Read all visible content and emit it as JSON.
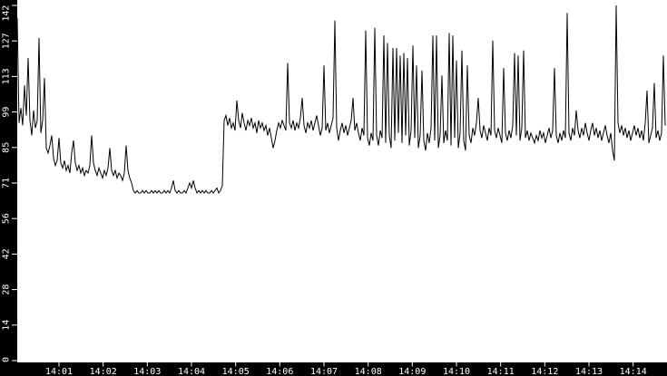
{
  "chart_data": {
    "type": "line",
    "title": "",
    "xlabel": "",
    "ylabel": "",
    "ylim": [
      0,
      142
    ],
    "y_tick_labels": [
      "142",
      "127",
      "113",
      "99",
      "85",
      "71",
      "56",
      "42",
      "28",
      "14",
      "0"
    ],
    "x_tick_labels": [
      "14:01",
      "14:02",
      "14:03",
      "14:04",
      "14:05",
      "14:06",
      "14:07",
      "14:08",
      "14:09",
      "14:10",
      "14:11",
      "14:12",
      "14:13",
      "14:14"
    ],
    "x_start_time": "14:00",
    "x_end_time": "14:14:45",
    "sample_interval_seconds": 2.47,
    "grid": "off",
    "legend": "none",
    "colors": {
      "line": "#000000",
      "plot_background": "#ffffff",
      "axis_background": "#000000",
      "axis_text": "#ffffff"
    },
    "samples": [
      137,
      95,
      101,
      94,
      110,
      98,
      121,
      96,
      90,
      100,
      93,
      96,
      129,
      91,
      96,
      113,
      85,
      83,
      86,
      90,
      81,
      78,
      80,
      89,
      79,
      77,
      80,
      76,
      78,
      75,
      83,
      88,
      79,
      76,
      78,
      75,
      77,
      74,
      76,
      75,
      78,
      90,
      79,
      76,
      74,
      77,
      75,
      73,
      76,
      74,
      77,
      85,
      76,
      74,
      76,
      73,
      75,
      74,
      72,
      75,
      86,
      76,
      73,
      71,
      68,
      67,
      68,
      67,
      67,
      68,
      67,
      68,
      67,
      67,
      68,
      67,
      68,
      67,
      68,
      67,
      67,
      68,
      67,
      68,
      67,
      69,
      72,
      68,
      67,
      68,
      67,
      67,
      68,
      67,
      69,
      71,
      69,
      72,
      69,
      67,
      68,
      67,
      68,
      67,
      68,
      67,
      67,
      68,
      67,
      68,
      69,
      67,
      68,
      70,
      96,
      98,
      94,
      97,
      93,
      95,
      92,
      104,
      96,
      93,
      99,
      95,
      92,
      96,
      94,
      97,
      93,
      95,
      91,
      96,
      93,
      95,
      92,
      94,
      90,
      93,
      89,
      85,
      88,
      92,
      95,
      93,
      96,
      94,
      92,
      119,
      95,
      93,
      96,
      92,
      95,
      93,
      97,
      105,
      94,
      91,
      95,
      93,
      96,
      92,
      95,
      98,
      94,
      90,
      93,
      118,
      92,
      95,
      91,
      94,
      97,
      136,
      93,
      88,
      92,
      95,
      91,
      94,
      90,
      93,
      96,
      105,
      92,
      95,
      91,
      88,
      93,
      90,
      132,
      89,
      86,
      91,
      88,
      133,
      90,
      86,
      92,
      89,
      130,
      87,
      127,
      90,
      85,
      125,
      88,
      125,
      91,
      122,
      87,
      123,
      90,
      121,
      86,
      92,
      126,
      89,
      118,
      85,
      90,
      116,
      88,
      84,
      91,
      87,
      93,
      130,
      88,
      130,
      85,
      90,
      114,
      87,
      92,
      88,
      131,
      86,
      130,
      89,
      120,
      85,
      91,
      124,
      88,
      84,
      118,
      90,
      87,
      93,
      90,
      95,
      105,
      92,
      89,
      94,
      91,
      88,
      93,
      90,
      128,
      92,
      89,
      93,
      90,
      87,
      117,
      91,
      88,
      92,
      89,
      94,
      123,
      90,
      122,
      88,
      93,
      124,
      89,
      92,
      88,
      91,
      89,
      87,
      90,
      88,
      92,
      89,
      91,
      87,
      90,
      93,
      89,
      92,
      117,
      90,
      87,
      91,
      88,
      92,
      89,
      139,
      91,
      88,
      93,
      90,
      100,
      92,
      89,
      93,
      90,
      95,
      91,
      88,
      92,
      95,
      90,
      93,
      89,
      92,
      88,
      91,
      94,
      90,
      87,
      91,
      84,
      80,
      142,
      95,
      91,
      94,
      90,
      93,
      89,
      92,
      88,
      91,
      94,
      90,
      93,
      89,
      92,
      88,
      95,
      108,
      87,
      90,
      93,
      111,
      89,
      92,
      88,
      91,
      122,
      94
    ]
  }
}
